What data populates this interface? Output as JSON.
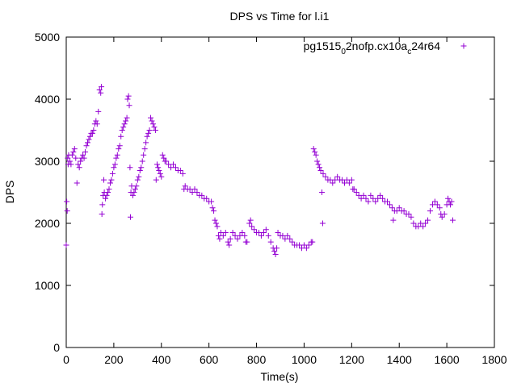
{
  "chart_data": {
    "type": "scatter",
    "title": "DPS vs Time for l.i1",
    "xlabel": "Time(s)",
    "ylabel": "DPS",
    "xlim": [
      0,
      1800
    ],
    "ylim": [
      0,
      5000
    ],
    "x_ticks": [
      0,
      200,
      400,
      600,
      800,
      1000,
      1200,
      1400,
      1600,
      1800
    ],
    "y_ticks": [
      0,
      1000,
      2000,
      3000,
      4000,
      5000
    ],
    "x_tick_labels": [
      "0",
      "200",
      "400",
      "600",
      "800",
      "1000",
      "1200",
      "1400",
      "1600",
      "1800"
    ],
    "y_tick_labels": [
      "0",
      "1000",
      "2000",
      "3000",
      "4000",
      "5000"
    ],
    "grid": false,
    "legend_position": "top-right",
    "marker": "plus",
    "series": [
      {
        "name": "pg1515_02nofp.cx10a_c24r64",
        "legend_main": "pg1515",
        "legend_sub1": "0",
        "legend_mid": "2nofp.cx10a",
        "legend_sub2": "c",
        "legend_end": "24r64",
        "color": "#9400d3",
        "points": [
          [
            0,
            1650
          ],
          [
            2,
            2350
          ],
          [
            4,
            2200
          ],
          [
            6,
            3050
          ],
          [
            8,
            2950
          ],
          [
            10,
            3100
          ],
          [
            15,
            3000
          ],
          [
            20,
            2950
          ],
          [
            25,
            3100
          ],
          [
            30,
            3150
          ],
          [
            35,
            3200
          ],
          [
            40,
            3050
          ],
          [
            45,
            2650
          ],
          [
            50,
            2950
          ],
          [
            55,
            2900
          ],
          [
            60,
            3000
          ],
          [
            65,
            3050
          ],
          [
            70,
            3100
          ],
          [
            75,
            3050
          ],
          [
            80,
            3150
          ],
          [
            85,
            3250
          ],
          [
            90,
            3300
          ],
          [
            95,
            3350
          ],
          [
            100,
            3400
          ],
          [
            105,
            3450
          ],
          [
            110,
            3450
          ],
          [
            115,
            3500
          ],
          [
            120,
            3600
          ],
          [
            125,
            3650
          ],
          [
            130,
            3600
          ],
          [
            135,
            3800
          ],
          [
            140,
            4150
          ],
          [
            145,
            4100
          ],
          [
            148,
            4200
          ],
          [
            150,
            2150
          ],
          [
            152,
            2300
          ],
          [
            155,
            2450
          ],
          [
            158,
            2700
          ],
          [
            160,
            2500
          ],
          [
            165,
            2400
          ],
          [
            170,
            2450
          ],
          [
            175,
            2500
          ],
          [
            180,
            2550
          ],
          [
            185,
            2650
          ],
          [
            190,
            2700
          ],
          [
            195,
            2800
          ],
          [
            200,
            2900
          ],
          [
            205,
            2950
          ],
          [
            210,
            3050
          ],
          [
            215,
            3100
          ],
          [
            220,
            3200
          ],
          [
            225,
            3250
          ],
          [
            230,
            3400
          ],
          [
            235,
            3500
          ],
          [
            240,
            3550
          ],
          [
            245,
            3600
          ],
          [
            250,
            3650
          ],
          [
            255,
            3700
          ],
          [
            258,
            4000
          ],
          [
            262,
            4050
          ],
          [
            265,
            3900
          ],
          [
            268,
            2900
          ],
          [
            270,
            2100
          ],
          [
            272,
            2500
          ],
          [
            275,
            2600
          ],
          [
            280,
            2450
          ],
          [
            285,
            2500
          ],
          [
            290,
            2550
          ],
          [
            295,
            2600
          ],
          [
            300,
            2700
          ],
          [
            305,
            2750
          ],
          [
            310,
            2850
          ],
          [
            315,
            2900
          ],
          [
            320,
            3000
          ],
          [
            325,
            3100
          ],
          [
            330,
            3200
          ],
          [
            335,
            3300
          ],
          [
            340,
            3400
          ],
          [
            345,
            3450
          ],
          [
            350,
            3500
          ],
          [
            355,
            3700
          ],
          [
            360,
            3650
          ],
          [
            365,
            3600
          ],
          [
            370,
            3550
          ],
          [
            375,
            3500
          ],
          [
            378,
            2700
          ],
          [
            382,
            2950
          ],
          [
            386,
            2900
          ],
          [
            390,
            2850
          ],
          [
            395,
            2800
          ],
          [
            400,
            2750
          ],
          [
            405,
            3100
          ],
          [
            410,
            3050
          ],
          [
            415,
            3000
          ],
          [
            420,
            3000
          ],
          [
            430,
            2950
          ],
          [
            440,
            2900
          ],
          [
            450,
            2950
          ],
          [
            460,
            2900
          ],
          [
            470,
            2850
          ],
          [
            480,
            2850
          ],
          [
            490,
            2800
          ],
          [
            495,
            2550
          ],
          [
            500,
            2600
          ],
          [
            510,
            2550
          ],
          [
            520,
            2550
          ],
          [
            530,
            2500
          ],
          [
            540,
            2550
          ],
          [
            550,
            2500
          ],
          [
            560,
            2450
          ],
          [
            570,
            2450
          ],
          [
            580,
            2400
          ],
          [
            590,
            2400
          ],
          [
            600,
            2350
          ],
          [
            610,
            2350
          ],
          [
            615,
            2250
          ],
          [
            620,
            2200
          ],
          [
            625,
            2050
          ],
          [
            630,
            2000
          ],
          [
            635,
            1950
          ],
          [
            640,
            1800
          ],
          [
            645,
            1750
          ],
          [
            650,
            1850
          ],
          [
            660,
            1800
          ],
          [
            670,
            1850
          ],
          [
            680,
            1700
          ],
          [
            685,
            1650
          ],
          [
            690,
            1750
          ],
          [
            700,
            1850
          ],
          [
            710,
            1800
          ],
          [
            720,
            1750
          ],
          [
            730,
            1800
          ],
          [
            740,
            1850
          ],
          [
            750,
            1800
          ],
          [
            755,
            1700
          ],
          [
            760,
            1700
          ],
          [
            770,
            2000
          ],
          [
            775,
            2050
          ],
          [
            780,
            1950
          ],
          [
            790,
            1900
          ],
          [
            800,
            1850
          ],
          [
            810,
            1850
          ],
          [
            820,
            1800
          ],
          [
            830,
            1850
          ],
          [
            840,
            1900
          ],
          [
            850,
            1800
          ],
          [
            860,
            1700
          ],
          [
            870,
            1600
          ],
          [
            875,
            1550
          ],
          [
            880,
            1500
          ],
          [
            885,
            1600
          ],
          [
            890,
            1850
          ],
          [
            900,
            1800
          ],
          [
            910,
            1800
          ],
          [
            920,
            1750
          ],
          [
            930,
            1800
          ],
          [
            940,
            1750
          ],
          [
            950,
            1700
          ],
          [
            960,
            1650
          ],
          [
            970,
            1650
          ],
          [
            980,
            1650
          ],
          [
            990,
            1600
          ],
          [
            1000,
            1650
          ],
          [
            1010,
            1600
          ],
          [
            1020,
            1650
          ],
          [
            1030,
            1700
          ],
          [
            1035,
            1700
          ],
          [
            1040,
            3200
          ],
          [
            1045,
            3150
          ],
          [
            1050,
            3100
          ],
          [
            1055,
            3000
          ],
          [
            1060,
            2950
          ],
          [
            1065,
            2900
          ],
          [
            1070,
            2850
          ],
          [
            1075,
            2500
          ],
          [
            1078,
            2000
          ],
          [
            1080,
            2800
          ],
          [
            1090,
            2750
          ],
          [
            1100,
            2700
          ],
          [
            1110,
            2700
          ],
          [
            1120,
            2650
          ],
          [
            1130,
            2700
          ],
          [
            1140,
            2750
          ],
          [
            1150,
            2700
          ],
          [
            1160,
            2700
          ],
          [
            1170,
            2650
          ],
          [
            1180,
            2700
          ],
          [
            1190,
            2650
          ],
          [
            1200,
            2700
          ],
          [
            1205,
            2550
          ],
          [
            1210,
            2550
          ],
          [
            1220,
            2500
          ],
          [
            1230,
            2450
          ],
          [
            1240,
            2400
          ],
          [
            1250,
            2450
          ],
          [
            1260,
            2400
          ],
          [
            1270,
            2350
          ],
          [
            1280,
            2450
          ],
          [
            1290,
            2400
          ],
          [
            1300,
            2350
          ],
          [
            1310,
            2400
          ],
          [
            1320,
            2450
          ],
          [
            1330,
            2400
          ],
          [
            1340,
            2350
          ],
          [
            1350,
            2350
          ],
          [
            1360,
            2300
          ],
          [
            1370,
            2250
          ],
          [
            1375,
            2050
          ],
          [
            1380,
            2200
          ],
          [
            1390,
            2200
          ],
          [
            1400,
            2250
          ],
          [
            1410,
            2200
          ],
          [
            1420,
            2200
          ],
          [
            1430,
            2150
          ],
          [
            1440,
            2150
          ],
          [
            1450,
            2100
          ],
          [
            1460,
            2000
          ],
          [
            1470,
            1950
          ],
          [
            1480,
            1950
          ],
          [
            1490,
            2000
          ],
          [
            1500,
            1950
          ],
          [
            1510,
            2000
          ],
          [
            1520,
            2050
          ],
          [
            1530,
            2200
          ],
          [
            1540,
            2300
          ],
          [
            1550,
            2350
          ],
          [
            1560,
            2300
          ],
          [
            1570,
            2250
          ],
          [
            1575,
            2150
          ],
          [
            1580,
            2100
          ],
          [
            1590,
            2150
          ],
          [
            1600,
            2300
          ],
          [
            1605,
            2400
          ],
          [
            1610,
            2350
          ],
          [
            1615,
            2300
          ],
          [
            1620,
            2350
          ],
          [
            1625,
            2050
          ]
        ]
      }
    ]
  }
}
